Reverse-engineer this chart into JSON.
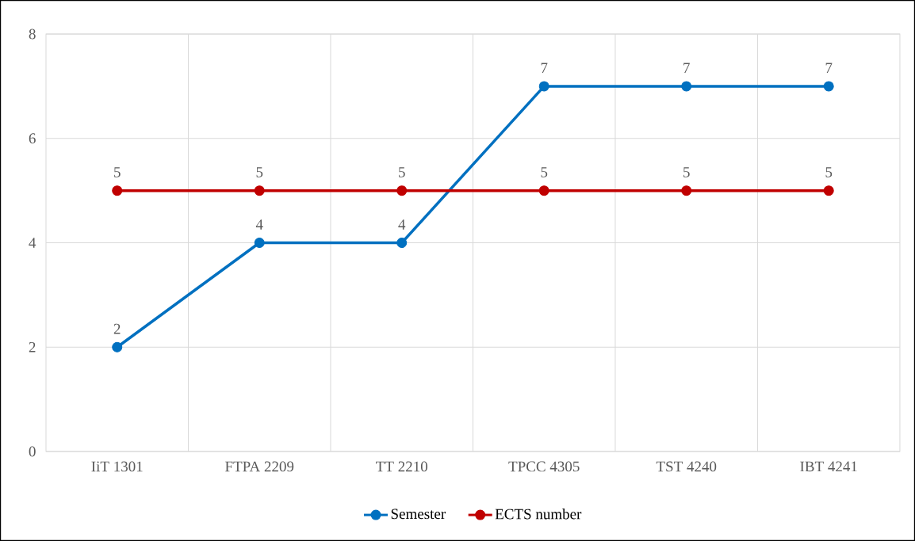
{
  "chart_data": {
    "type": "line",
    "categories": [
      "IiT 1301",
      "FTPA 2209",
      "TT 2210",
      "TPCC 4305",
      "TST 4240",
      "IBT 4241"
    ],
    "series": [
      {
        "name": "Semester",
        "color": "#0070c0",
        "values": [
          2,
          4,
          4,
          7,
          7,
          7
        ]
      },
      {
        "name": "ECTS number",
        "color": "#c00000",
        "values": [
          5,
          5,
          5,
          5,
          5,
          5
        ]
      }
    ],
    "ylim": [
      0,
      8
    ],
    "yticks": [
      0,
      2,
      4,
      6,
      8
    ],
    "grid": true,
    "legend": "bottom",
    "marker": "circle",
    "line_style": "solid",
    "data_labels": true
  }
}
